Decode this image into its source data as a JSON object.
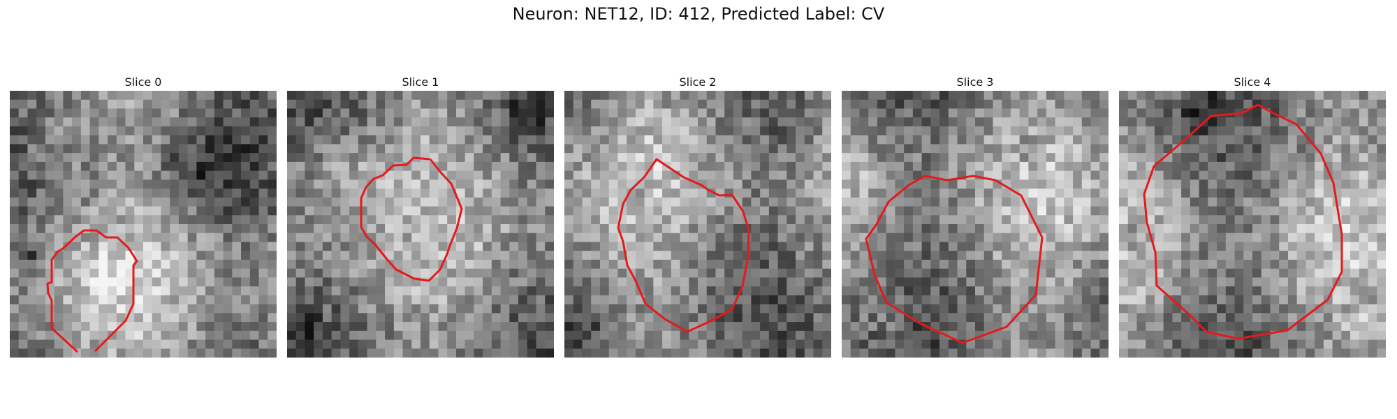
{
  "title": "Neuron: NET12, ID: 412, Predicted Label: CV",
  "accent_color": "#e41a1c",
  "image_grid": 30,
  "panels": [
    {
      "label": "Slice 0",
      "seed": 11,
      "blobs": [
        [
          0.72,
          0.3,
          0.22,
          -60
        ],
        [
          0.35,
          0.7,
          0.16,
          30
        ],
        [
          0.08,
          0.62,
          0.08,
          -80
        ],
        [
          0.15,
          0.18,
          0.2,
          45
        ]
      ]
    },
    {
      "label": "Slice 1",
      "seed": 23,
      "blobs": [
        [
          0.5,
          0.52,
          0.22,
          -30
        ],
        [
          0.88,
          0.1,
          0.1,
          -70
        ],
        [
          0.08,
          0.88,
          0.08,
          -50
        ],
        [
          0.2,
          0.3,
          0.2,
          35
        ]
      ]
    },
    {
      "label": "Slice 2",
      "seed": 37,
      "blobs": [
        [
          0.55,
          0.52,
          0.34,
          -25
        ],
        [
          0.25,
          0.35,
          0.12,
          -45
        ],
        [
          0.08,
          0.9,
          0.08,
          -55
        ],
        [
          0.85,
          0.15,
          0.1,
          -40
        ]
      ]
    },
    {
      "label": "Slice 3",
      "seed": 53,
      "blobs": [
        [
          0.53,
          0.48,
          0.38,
          -15
        ],
        [
          0.7,
          0.22,
          0.08,
          -55
        ],
        [
          0.18,
          0.85,
          0.12,
          35
        ],
        [
          0.08,
          0.3,
          0.1,
          40
        ]
      ]
    },
    {
      "label": "Slice 4",
      "seed": 71,
      "blobs": [
        [
          0.5,
          0.5,
          0.4,
          -10
        ],
        [
          0.3,
          0.08,
          0.1,
          -60
        ],
        [
          0.05,
          0.55,
          0.08,
          -55
        ],
        [
          0.92,
          0.88,
          0.1,
          45
        ]
      ]
    }
  ]
}
